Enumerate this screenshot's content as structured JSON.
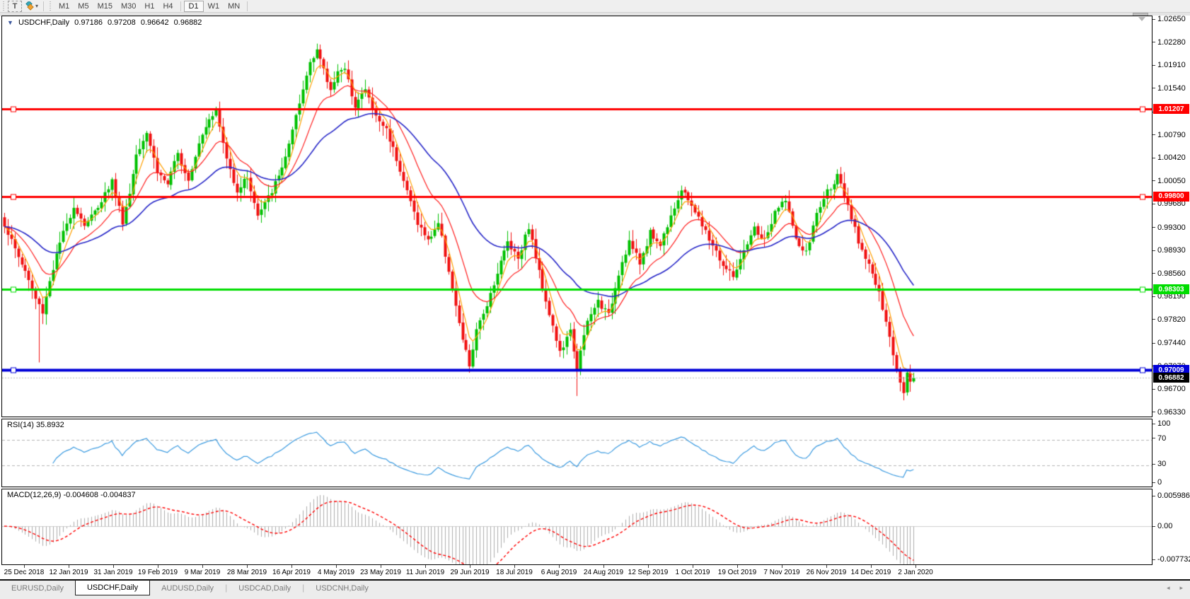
{
  "toolbar": {
    "text_tool_label": "T",
    "dropdown_caret": "▾",
    "timeframes": [
      "M1",
      "M5",
      "M15",
      "M30",
      "H1",
      "H4",
      "D1",
      "W1",
      "MN"
    ],
    "active_timeframe": "D1",
    "separator_after": "H4"
  },
  "chart": {
    "title": {
      "dropdown_icon": "▼",
      "symbol": "USDCHF,Daily",
      "open": "0.97186",
      "high": "0.97208",
      "low": "0.96642",
      "close": "0.96882"
    },
    "price_axis_labels": [
      "1.02650",
      "1.02280",
      "1.01910",
      "1.01540",
      "1.01160",
      "1.00790",
      "1.00420",
      "1.00050",
      "0.99680",
      "0.99300",
      "0.98930",
      "0.98560",
      "0.98190",
      "0.97820",
      "0.97440",
      "0.97070",
      "0.96700",
      "0.96330"
    ],
    "levels": [
      {
        "label": "1.01207",
        "value": 1.01207,
        "color": "#FF0000",
        "width": 3
      },
      {
        "label": "0.99800",
        "value": 0.998,
        "color": "#FF0000",
        "width": 3
      },
      {
        "label": "0.98303",
        "value": 0.98303,
        "color": "#00DD00",
        "width": 3
      },
      {
        "label": "0.97009",
        "value": 0.97009,
        "color": "#0000D8",
        "width": 4
      }
    ],
    "current_price": {
      "label": "0.96882",
      "value": 0.96882
    }
  },
  "rsi": {
    "label": "RSI(14) 35.8932",
    "period": 14,
    "value": 35.8932,
    "axis_labels": [
      "100",
      "70",
      "30",
      "0"
    ],
    "axis_values": [
      100,
      70,
      30,
      0
    ],
    "level_values": [
      70,
      30
    ]
  },
  "macd": {
    "label": "MACD(12,26,9) -0.004608 -0.004837",
    "fast": 12,
    "slow": 26,
    "signal": 9,
    "value": -0.004608,
    "signal_value": -0.004837,
    "axis_top_label": "0.005986",
    "axis_zero_label": "0.00",
    "axis_bottom_label": "-0.007732",
    "axis_top_value": 0.005986
  },
  "date_axis": [
    "25 Dec 2018",
    "12 Jan 2019",
    "31 Jan 2019",
    "19 Feb 2019",
    "9 Mar 2019",
    "28 Mar 2019",
    "16 Apr 2019",
    "4 May 2019",
    "23 May 2019",
    "11 Jun 2019",
    "29 Jun 2019",
    "18 Jul 2019",
    "6 Aug 2019",
    "24 Aug 2019",
    "12 Sep 2019",
    "1 Oct 2019",
    "19 Oct 2019",
    "7 Nov 2019",
    "26 Nov 2019",
    "14 Dec 2019",
    "2 Jan 2020"
  ],
  "tabs": {
    "items": [
      "EURUSD,Daily",
      "USDCHF,Daily",
      "AUDUSD,Daily",
      "USDCAD,Daily",
      "USDCNH,Daily"
    ],
    "active": "USDCHF,Daily",
    "nav_left_icon": "◂",
    "nav_right_icon": "▸"
  },
  "chart_data": {
    "type": "candlestick",
    "symbol": "USDCHF",
    "timeframe": "Daily",
    "bars": 263,
    "last_ohlc": {
      "open": 0.97186,
      "high": 0.97208,
      "low": 0.96642,
      "close": 0.96882
    },
    "close_anchors": [
      [
        0,
        0.9935
      ],
      [
        3,
        0.9895
      ],
      [
        6,
        0.986
      ],
      [
        9,
        0.9815
      ],
      [
        11,
        0.9795
      ],
      [
        13,
        0.9845
      ],
      [
        16,
        0.9905
      ],
      [
        20,
        0.9965
      ],
      [
        23,
        0.9935
      ],
      [
        26,
        0.9955
      ],
      [
        29,
        0.9985
      ],
      [
        31,
        1.0005
      ],
      [
        34,
        0.994
      ],
      [
        36,
        0.9985
      ],
      [
        38,
        1.005
      ],
      [
        41,
        1.0085
      ],
      [
        44,
        1.002
      ],
      [
        47,
        1.0
      ],
      [
        50,
        1.0048
      ],
      [
        53,
        1.0008
      ],
      [
        56,
        1.0068
      ],
      [
        59,
        1.0108
      ],
      [
        61,
        1.0118
      ],
      [
        64,
        1.004
      ],
      [
        67,
        0.999
      ],
      [
        70,
        1.0012
      ],
      [
        73,
        0.9948
      ],
      [
        76,
        0.9978
      ],
      [
        79,
        1.0012
      ],
      [
        82,
        1.0062
      ],
      [
        85,
        1.0128
      ],
      [
        88,
        1.0198
      ],
      [
        90,
        1.0218
      ],
      [
        92,
        1.0182
      ],
      [
        94,
        1.015
      ],
      [
        96,
        1.0185
      ],
      [
        98,
        1.0182
      ],
      [
        101,
        1.0128
      ],
      [
        104,
        1.0152
      ],
      [
        107,
        1.0108
      ],
      [
        110,
        1.0088
      ],
      [
        113,
        1.0042
      ],
      [
        116,
        0.9988
      ],
      [
        119,
        0.9938
      ],
      [
        122,
        0.9908
      ],
      [
        125,
        0.9938
      ],
      [
        128,
        0.9862
      ],
      [
        131,
        0.9772
      ],
      [
        134,
        0.9708
      ],
      [
        136,
        0.9762
      ],
      [
        139,
        0.9808
      ],
      [
        142,
        0.9858
      ],
      [
        145,
        0.9908
      ],
      [
        148,
        0.9882
      ],
      [
        151,
        0.9932
      ],
      [
        154,
        0.9858
      ],
      [
        157,
        0.9792
      ],
      [
        160,
        0.9728
      ],
      [
        163,
        0.9762
      ],
      [
        165,
        0.9705
      ],
      [
        168,
        0.9778
      ],
      [
        171,
        0.9812
      ],
      [
        174,
        0.9788
      ],
      [
        177,
        0.9858
      ],
      [
        180,
        0.9908
      ],
      [
        183,
        0.9872
      ],
      [
        186,
        0.9922
      ],
      [
        189,
        0.9902
      ],
      [
        192,
        0.9952
      ],
      [
        195,
        0.9988
      ],
      [
        198,
        0.9968
      ],
      [
        201,
        0.9932
      ],
      [
        204,
        0.9902
      ],
      [
        207,
        0.9868
      ],
      [
        210,
        0.9852
      ],
      [
        213,
        0.9888
      ],
      [
        216,
        0.9928
      ],
      [
        219,
        0.9908
      ],
      [
        222,
        0.9952
      ],
      [
        225,
        0.9978
      ],
      [
        228,
        0.9908
      ],
      [
        231,
        0.9888
      ],
      [
        234,
        0.9952
      ],
      [
        237,
        0.9988
      ],
      [
        240,
        1.0012
      ],
      [
        243,
        0.9962
      ],
      [
        246,
        0.9908
      ],
      [
        249,
        0.9872
      ],
      [
        252,
        0.9822
      ],
      [
        255,
        0.9752
      ],
      [
        257,
        0.9702
      ],
      [
        259,
        0.9668
      ],
      [
        260,
        0.9702
      ],
      [
        261,
        0.9682
      ],
      [
        262,
        0.96882
      ]
    ],
    "wick_overrides": [
      {
        "i": 10,
        "low": 0.9713
      },
      {
        "i": 90,
        "high": 1.0226
      },
      {
        "i": 165,
        "low": 0.9659
      },
      {
        "i": 259,
        "low": 0.9652
      }
    ],
    "moving_averages": [
      {
        "name": "fast",
        "period": 5,
        "color": "#FFA000"
      },
      {
        "name": "mid",
        "period": 15,
        "color": "#FF2020"
      },
      {
        "name": "slow",
        "period": 40,
        "color": "#2828C8"
      }
    ]
  },
  "colors": {
    "candle_up": "#00C000",
    "candle_down": "#F01010",
    "rsi_line": "#3C9BE0",
    "rsi_level_dash": "#B4B4B4",
    "macd_hist": "#ACACAC",
    "macd_signal": "#FF0000",
    "current_line": "#BBBBBB",
    "badge_black": "#000000"
  }
}
